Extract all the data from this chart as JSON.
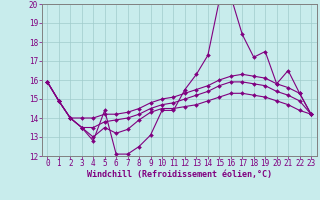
{
  "title": "",
  "xlabel": "Windchill (Refroidissement éolien,°C)",
  "ylabel": "",
  "background_color": "#c8ecec",
  "line_color": "#800080",
  "grid_color": "#a0cccc",
  "spine_color": "#808080",
  "xlim": [
    -0.5,
    23.5
  ],
  "ylim": [
    12,
    20
  ],
  "yticks": [
    12,
    13,
    14,
    15,
    16,
    17,
    18,
    19,
    20
  ],
  "xticks": [
    0,
    1,
    2,
    3,
    4,
    5,
    6,
    7,
    8,
    9,
    10,
    11,
    12,
    13,
    14,
    15,
    16,
    17,
    18,
    19,
    20,
    21,
    22,
    23
  ],
  "series": [
    [
      15.9,
      14.9,
      14.0,
      13.5,
      12.8,
      14.4,
      12.1,
      12.1,
      12.5,
      13.1,
      14.4,
      14.4,
      15.5,
      16.3,
      17.3,
      20.2,
      20.4,
      18.4,
      17.2,
      17.5,
      15.8,
      16.5,
      15.3,
      14.2
    ],
    [
      15.9,
      14.9,
      14.0,
      14.0,
      14.0,
      14.2,
      14.2,
      14.3,
      14.5,
      14.8,
      15.0,
      15.1,
      15.3,
      15.5,
      15.7,
      16.0,
      16.2,
      16.3,
      16.2,
      16.1,
      15.8,
      15.6,
      15.3,
      14.2
    ],
    [
      15.9,
      14.9,
      14.0,
      13.5,
      13.5,
      13.8,
      13.9,
      14.0,
      14.2,
      14.5,
      14.7,
      14.8,
      15.0,
      15.2,
      15.4,
      15.7,
      15.9,
      15.9,
      15.8,
      15.7,
      15.4,
      15.2,
      14.9,
      14.2
    ],
    [
      15.9,
      14.9,
      14.0,
      13.5,
      13.0,
      13.5,
      13.2,
      13.4,
      13.9,
      14.3,
      14.5,
      14.5,
      14.6,
      14.7,
      14.9,
      15.1,
      15.3,
      15.3,
      15.2,
      15.1,
      14.9,
      14.7,
      14.4,
      14.2
    ]
  ],
  "tick_fontsize": 5.5,
  "xlabel_fontsize": 6.0,
  "marker_size": 2.0,
  "line_width": 0.8
}
